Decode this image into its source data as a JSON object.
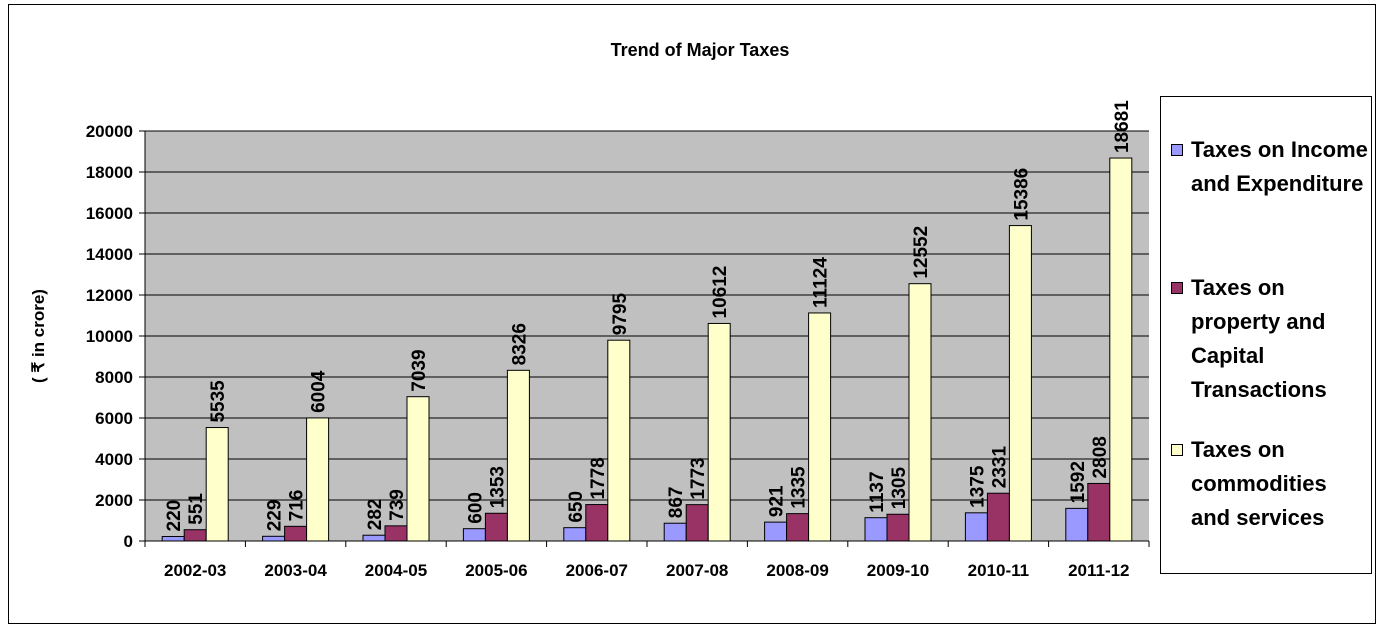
{
  "chart_data": {
    "type": "bar",
    "title": "Trend of Major Taxes",
    "ylabel": "( ₹ in crore)",
    "xlabel": "",
    "ylim": [
      0,
      20000
    ],
    "yticks": [
      0,
      2000,
      4000,
      6000,
      8000,
      10000,
      12000,
      14000,
      16000,
      18000,
      20000
    ],
    "grid": true,
    "legend_position": "right",
    "categories": [
      "2002-03",
      "2003-04",
      "2004-05",
      "2005-06",
      "2006-07",
      "2007-08",
      "2008-09",
      "2009-10",
      "2010-11",
      "2011-12"
    ],
    "series": [
      {
        "name": "Taxes on Income and Expenditure",
        "color": "#9999ff",
        "values": [
          220,
          229,
          282,
          600,
          650,
          867,
          921,
          1137,
          1375,
          1592
        ]
      },
      {
        "name": "Taxes on property and Capital Transactions",
        "color": "#993366",
        "values": [
          551,
          716,
          739,
          1353,
          1778,
          1773,
          1335,
          1305,
          2331,
          2808
        ]
      },
      {
        "name": "Taxes on commodities and services",
        "color": "#ffffcc",
        "values": [
          5535,
          6004,
          7039,
          8326,
          9795,
          10612,
          11124,
          12552,
          15386,
          18681
        ]
      }
    ],
    "plot_background": "#c0c0c0"
  }
}
